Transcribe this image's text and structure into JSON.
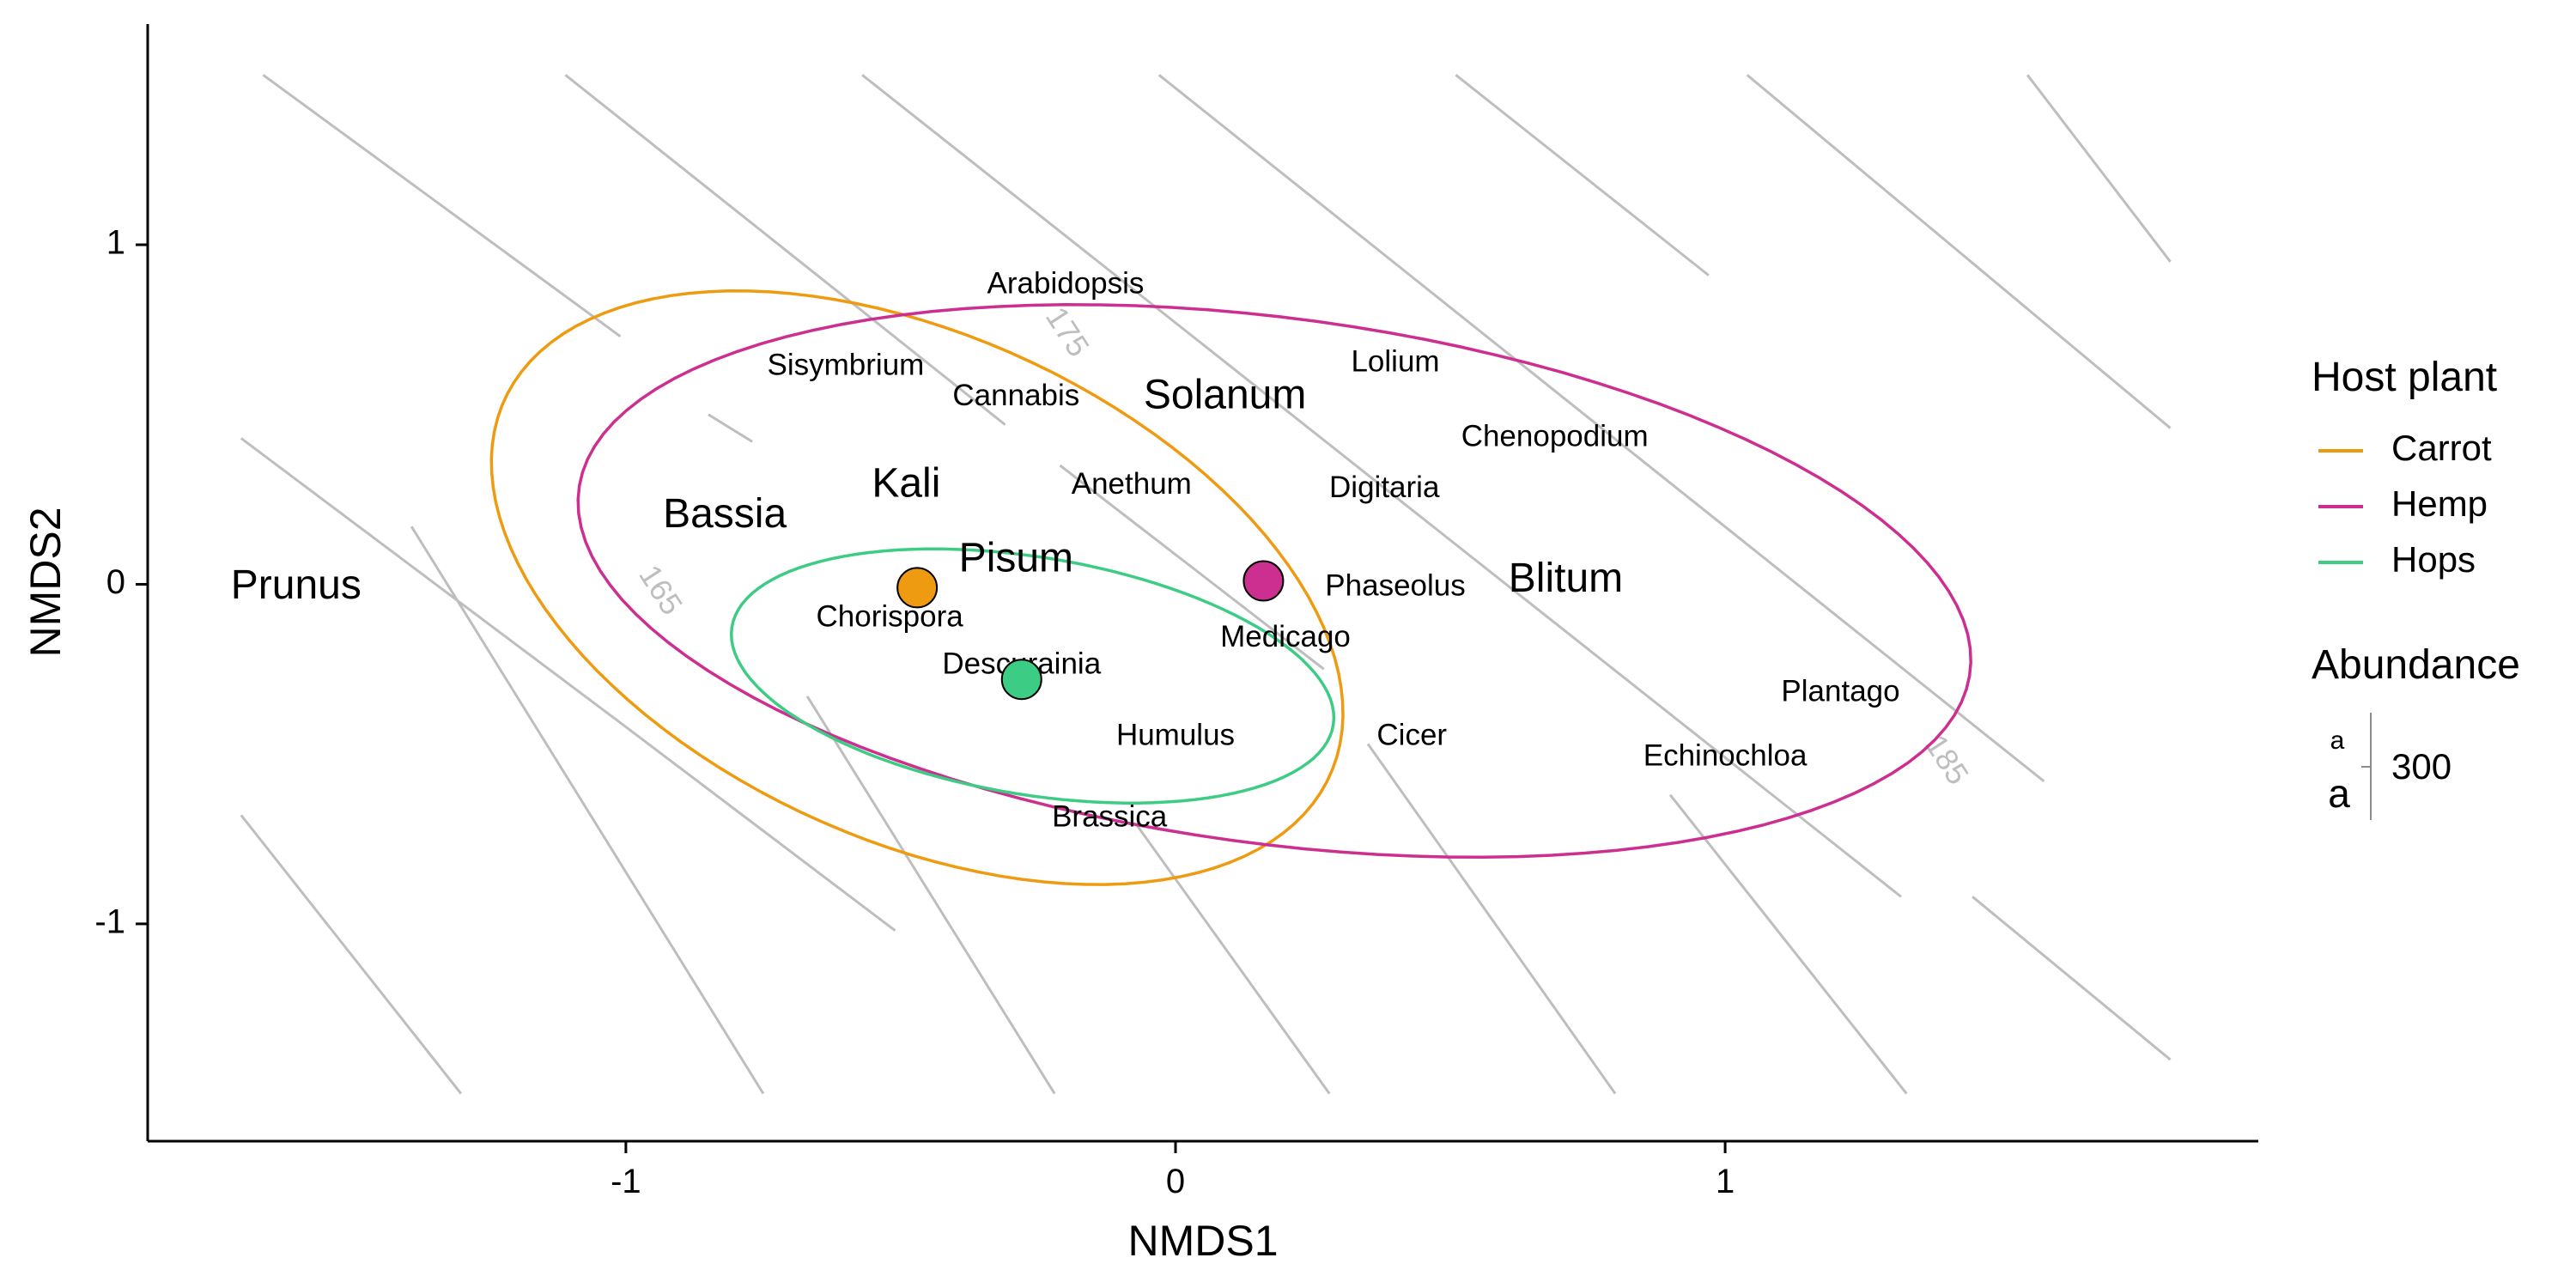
{
  "chart_data": {
    "type": "scatter",
    "title": "",
    "xlabel": "NMDS1",
    "ylabel": "NMDS2",
    "xlim": [
      -1.87,
      1.97
    ],
    "ylim": [
      -1.64,
      1.65
    ],
    "x_ticks": [
      -1,
      0,
      1
    ],
    "y_ticks": [
      -1,
      0,
      1
    ],
    "x_tick_labels": [
      "-1",
      "0",
      "1"
    ],
    "y_tick_labels": [
      "-1",
      "0",
      "1"
    ],
    "grid": false,
    "legend_position": "right",
    "colors": {
      "Carrot": "#EE9B11",
      "Hemp": "#CC2F8F",
      "Hops": "#3DCC84",
      "contour": "#BEBEBE"
    },
    "legend": {
      "host_title": "Host plant",
      "hosts": [
        {
          "name": "Carrot",
          "color": "#EE9B11"
        },
        {
          "name": "Hemp",
          "color": "#CC2F8F"
        },
        {
          "name": "Hops",
          "color": "#3DCC84"
        }
      ],
      "abundance_title": "Abundance",
      "abundance_glyph": "a",
      "abundance_value": "300"
    },
    "centroids": [
      {
        "host": "Carrot",
        "x": -0.47,
        "y": -0.01
      },
      {
        "host": "Hemp",
        "x": 0.16,
        "y": 0.01
      },
      {
        "host": "Hops",
        "x": -0.28,
        "y": -0.28
      }
    ],
    "ellipses": [
      {
        "host": "Carrot",
        "cx": -0.47,
        "cy": -0.01,
        "a": 0.99,
        "b": 0.62,
        "angle_deg": -53
      },
      {
        "host": "Hemp",
        "cx": 0.18,
        "cy": 0.01,
        "a": 1.3,
        "b": 0.76,
        "angle_deg": -16
      },
      {
        "host": "Hops",
        "cx": -0.26,
        "cy": -0.27,
        "a": 0.57,
        "b": 0.34,
        "angle_deg": -20
      }
    ],
    "species": [
      {
        "name": "Prunus",
        "x": -1.6,
        "y": -0.01,
        "size": "large"
      },
      {
        "name": "Bassia",
        "x": -0.82,
        "y": 0.2,
        "size": "large"
      },
      {
        "name": "Kali",
        "x": -0.49,
        "y": 0.29,
        "size": "large"
      },
      {
        "name": "Pisum",
        "x": -0.29,
        "y": 0.07,
        "size": "large"
      },
      {
        "name": "Solanum",
        "x": 0.09,
        "y": 0.55,
        "size": "large"
      },
      {
        "name": "Blitum",
        "x": 0.71,
        "y": 0.01,
        "size": "large"
      },
      {
        "name": "Arabidopsis",
        "x": -0.2,
        "y": 0.88,
        "size": "small"
      },
      {
        "name": "Sisymbrium",
        "x": -0.6,
        "y": 0.64,
        "size": "small"
      },
      {
        "name": "Cannabis",
        "x": -0.29,
        "y": 0.55,
        "size": "small"
      },
      {
        "name": "Lolium",
        "x": 0.4,
        "y": 0.65,
        "size": "small"
      },
      {
        "name": "Chenopodium",
        "x": 0.69,
        "y": 0.43,
        "size": "small"
      },
      {
        "name": "Anethum",
        "x": -0.08,
        "y": 0.29,
        "size": "small"
      },
      {
        "name": "Digitaria",
        "x": 0.38,
        "y": 0.28,
        "size": "small"
      },
      {
        "name": "Chorispora",
        "x": -0.52,
        "y": -0.1,
        "size": "small"
      },
      {
        "name": "Phaseolus",
        "x": 0.4,
        "y": -0.01,
        "size": "small"
      },
      {
        "name": "Medicago",
        "x": 0.2,
        "y": -0.16,
        "size": "small"
      },
      {
        "name": "Descurainia",
        "x": -0.28,
        "y": -0.24,
        "size": "small"
      },
      {
        "name": "Plantago",
        "x": 1.21,
        "y": -0.32,
        "size": "small"
      },
      {
        "name": "Humulus",
        "x": 0.0,
        "y": -0.45,
        "size": "small"
      },
      {
        "name": "Cicer",
        "x": 0.43,
        "y": -0.45,
        "size": "small"
      },
      {
        "name": "Echinochloa",
        "x": 1.0,
        "y": -0.51,
        "size": "small"
      },
      {
        "name": "Brassica",
        "x": -0.12,
        "y": -0.69,
        "size": "small"
      }
    ],
    "contours": [
      {
        "x1": -1.66,
        "y1": 1.5,
        "x2": -1.01,
        "y2": 0.73
      },
      {
        "x1": -0.85,
        "y1": 0.5,
        "x2": -0.77,
        "y2": 0.42
      },
      {
        "x1": -1.11,
        "y1": 1.5,
        "x2": -0.31,
        "y2": 0.47
      },
      {
        "x1": -0.21,
        "y1": 0.35,
        "x2": 0.27,
        "y2": -0.25
      },
      {
        "x1": -0.57,
        "y1": 1.5,
        "x2": 1.32,
        "y2": -0.92
      },
      {
        "x1": -0.03,
        "y1": 1.5,
        "x2": 1.58,
        "y2": -0.58
      },
      {
        "x1": 0.51,
        "y1": 1.5,
        "x2": 0.97,
        "y2": 0.91
      },
      {
        "x1": 1.04,
        "y1": 1.5,
        "x2": 1.81,
        "y2": 0.46
      },
      {
        "x1": 1.55,
        "y1": 1.5,
        "x2": 1.81,
        "y2": 0.95
      },
      {
        "x1": -1.7,
        "y1": 0.43,
        "x2": -1.0,
        "y2": -0.42
      },
      {
        "x1": -1.0,
        "y1": -0.42,
        "x2": -0.51,
        "y2": -1.02
      },
      {
        "x1": -1.7,
        "y1": -0.68,
        "x2": -1.3,
        "y2": -1.5
      },
      {
        "x1": -1.39,
        "y1": 0.17,
        "x2": -0.75,
        "y2": -1.5
      },
      {
        "x1": -0.67,
        "y1": -0.33,
        "x2": -0.22,
        "y2": -1.5
      },
      {
        "x1": -0.07,
        "y1": -0.71,
        "x2": 0.28,
        "y2": -1.5
      },
      {
        "x1": 0.35,
        "y1": -0.47,
        "x2": 0.8,
        "y2": -1.5
      },
      {
        "x1": 0.9,
        "y1": -0.62,
        "x2": 1.33,
        "y2": -1.5
      },
      {
        "x1": 1.45,
        "y1": -0.92,
        "x2": 1.81,
        "y2": -1.4
      }
    ],
    "contour_labels": [
      {
        "text": "165",
        "x": -0.94,
        "y": -0.02,
        "angle_deg": 57
      },
      {
        "text": "175",
        "x": -0.2,
        "y": 0.74,
        "angle_deg": 57
      },
      {
        "text": "185",
        "x": 1.4,
        "y": -0.52,
        "angle_deg": 57
      }
    ]
  }
}
